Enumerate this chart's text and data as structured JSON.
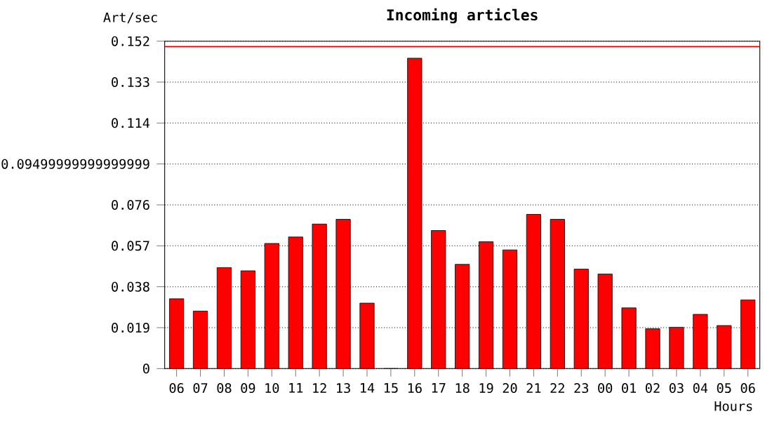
{
  "chart_data": {
    "type": "bar",
    "title": "Incoming articles",
    "ylabel": "Art/sec",
    "xlabel": "Hours",
    "categories": [
      "06",
      "07",
      "08",
      "09",
      "10",
      "11",
      "12",
      "13",
      "14",
      "15",
      "16",
      "17",
      "18",
      "19",
      "20",
      "21",
      "22",
      "23",
      "00",
      "01",
      "02",
      "03",
      "04",
      "05",
      "06"
    ],
    "values": [
      0.0324,
      0.0267,
      0.0469,
      0.0454,
      0.0581,
      0.0611,
      0.0671,
      0.0693,
      0.0304,
      0,
      0.1441,
      0.0641,
      0.0484,
      0.0589,
      0.0551,
      0.0716,
      0.0693,
      0.0462,
      0.0439,
      0.0282,
      0.0185,
      0.0192,
      0.0252,
      0.02,
      0.0319
    ],
    "color": "#ff0000",
    "ylim": [
      0,
      0.152
    ],
    "yticks": [
      0,
      0.019,
      0.038,
      0.057,
      0.076,
      {
        "value": 0.09499999999999999,
        "label": "0.09499999999999999"
      },
      0.114,
      0.133,
      0.152
    ],
    "grid": "y",
    "ref_lines": [
      {
        "axis": "y",
        "value": 0.1495,
        "color": "#ff0000"
      }
    ]
  }
}
